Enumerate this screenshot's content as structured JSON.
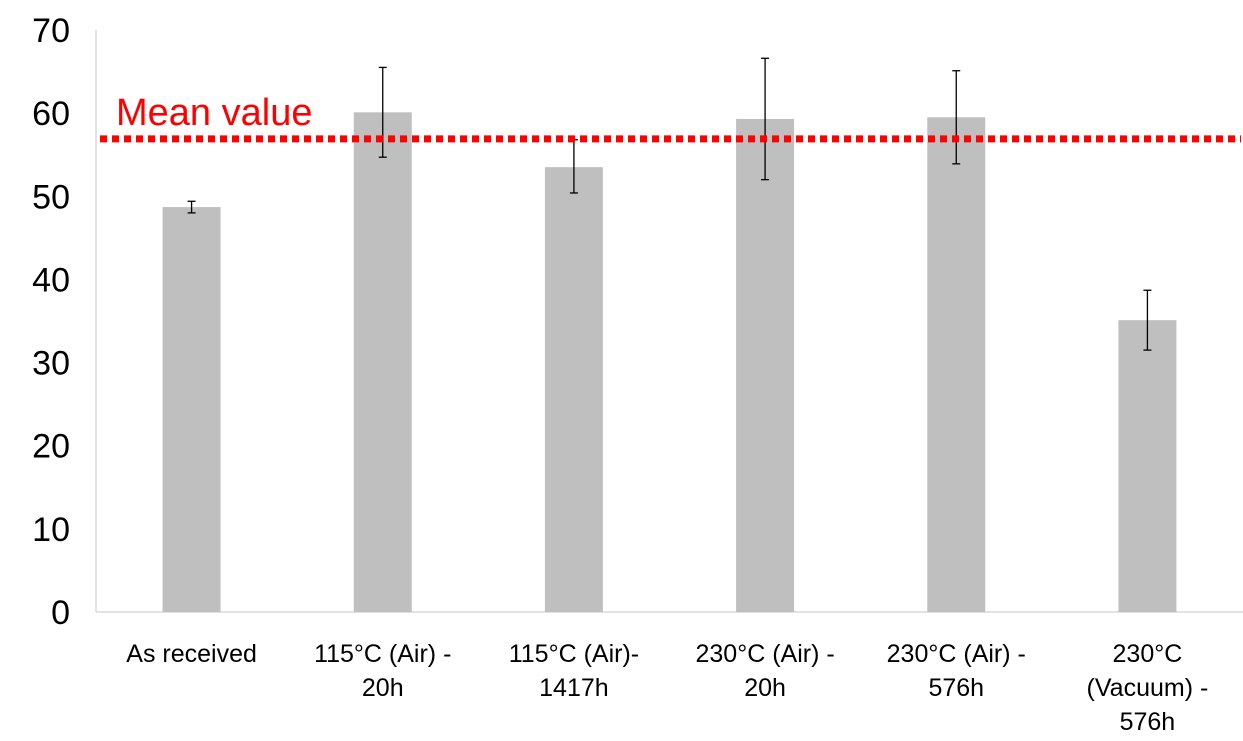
{
  "chart_data": {
    "type": "bar",
    "title": "",
    "xlabel": "",
    "ylabel": "",
    "ylim": [
      0,
      70
    ],
    "yticks": [
      0,
      10,
      20,
      30,
      40,
      50,
      60,
      70
    ],
    "grid": false,
    "legend": "none",
    "categories": [
      [
        "As received"
      ],
      [
        "115°C (Air) -",
        "20h"
      ],
      [
        "115°C (Air)-",
        "1417h"
      ],
      [
        "230°C (Air) -",
        "20h"
      ],
      [
        "230°C (Air) -",
        "576h"
      ],
      [
        "230°C",
        "(Vacuum) -",
        "576h"
      ]
    ],
    "series": [
      {
        "values": [
          48.7,
          60.1,
          53.5,
          59.3,
          59.5,
          35.1
        ],
        "error_low": [
          48.0,
          54.7,
          50.4,
          52.0,
          53.9,
          31.5
        ],
        "error_high": [
          49.4,
          65.5,
          56.8,
          66.6,
          65.1,
          38.7
        ]
      }
    ],
    "reference_line": {
      "label": "Mean value",
      "value": 56.9,
      "style": "dotted"
    },
    "colors": {
      "bar": "#bfbfbf",
      "error_bar": "#000000",
      "reference_line": "#ff0000",
      "axis": "#d9d9d9"
    }
  }
}
